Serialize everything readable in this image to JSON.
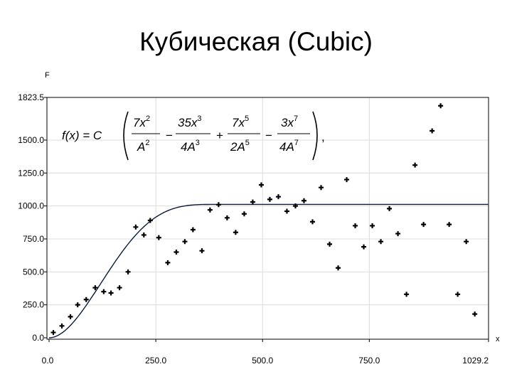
{
  "title": "Кубическая (Cubic)",
  "chart_data": {
    "type": "scatter",
    "title": "Кубическая (Cubic)",
    "xlabel": "x",
    "ylabel": "F",
    "xlim": [
      0.0,
      1029.2
    ],
    "ylim": [
      0.0,
      1823.5
    ],
    "x_ticks": [
      "0.0",
      "250.0",
      "500.0",
      "750.0",
      "1029.2"
    ],
    "x_tick_values": [
      0,
      250,
      500,
      750,
      1029.2
    ],
    "y_ticks": [
      "0.0",
      "250.0",
      "500.0",
      "750.0",
      "1000.0",
      "1250.0",
      "1500.0",
      "1823.5"
    ],
    "y_tick_values": [
      0,
      250,
      500,
      750,
      1000,
      1250,
      1500,
      1823.5
    ],
    "grid": true,
    "formula": {
      "lhs": "f(x) = C",
      "t1_num": "7x",
      "t1_num_exp": "2",
      "t1_den": "A",
      "t1_den_exp": "2",
      "op1": "−",
      "t2_num": "35x",
      "t2_num_exp": "3",
      "t2_den": "4A",
      "t2_den_exp": "3",
      "op2": "+",
      "t3_num": "7x",
      "t3_num_exp": "5",
      "t3_den": "2A",
      "t3_den_exp": "5",
      "op3": "−",
      "t4_num": "3x",
      "t4_num_exp": "7",
      "t4_den": "4A",
      "t4_den_exp": "7",
      "tail": ","
    },
    "model": {
      "name": "cubic",
      "sill": 1012,
      "range": 400
    },
    "points": [
      [
        10,
        40
      ],
      [
        30,
        90
      ],
      [
        50,
        160
      ],
      [
        67,
        250
      ],
      [
        87,
        290
      ],
      [
        108,
        380
      ],
      [
        128,
        350
      ],
      [
        145,
        340
      ],
      [
        165,
        380
      ],
      [
        185,
        500
      ],
      [
        203,
        840
      ],
      [
        222,
        780
      ],
      [
        237,
        890
      ],
      [
        257,
        760
      ],
      [
        278,
        570
      ],
      [
        298,
        650
      ],
      [
        318,
        730
      ],
      [
        337,
        820
      ],
      [
        358,
        660
      ],
      [
        377,
        970
      ],
      [
        397,
        1010
      ],
      [
        417,
        910
      ],
      [
        437,
        800
      ],
      [
        457,
        940
      ],
      [
        477,
        1030
      ],
      [
        497,
        1160
      ],
      [
        517,
        1050
      ],
      [
        537,
        1070
      ],
      [
        557,
        960
      ],
      [
        577,
        1000
      ],
      [
        597,
        1040
      ],
      [
        617,
        880
      ],
      [
        637,
        1140
      ],
      [
        657,
        710
      ],
      [
        677,
        530
      ],
      [
        697,
        1200
      ],
      [
        717,
        850
      ],
      [
        737,
        690
      ],
      [
        757,
        850
      ],
      [
        777,
        730
      ],
      [
        797,
        980
      ],
      [
        817,
        790
      ],
      [
        837,
        330
      ],
      [
        857,
        1310
      ],
      [
        877,
        860
      ],
      [
        897,
        1570
      ],
      [
        917,
        1760
      ],
      [
        937,
        860
      ],
      [
        957,
        330
      ],
      [
        977,
        730
      ],
      [
        997,
        180
      ]
    ]
  }
}
